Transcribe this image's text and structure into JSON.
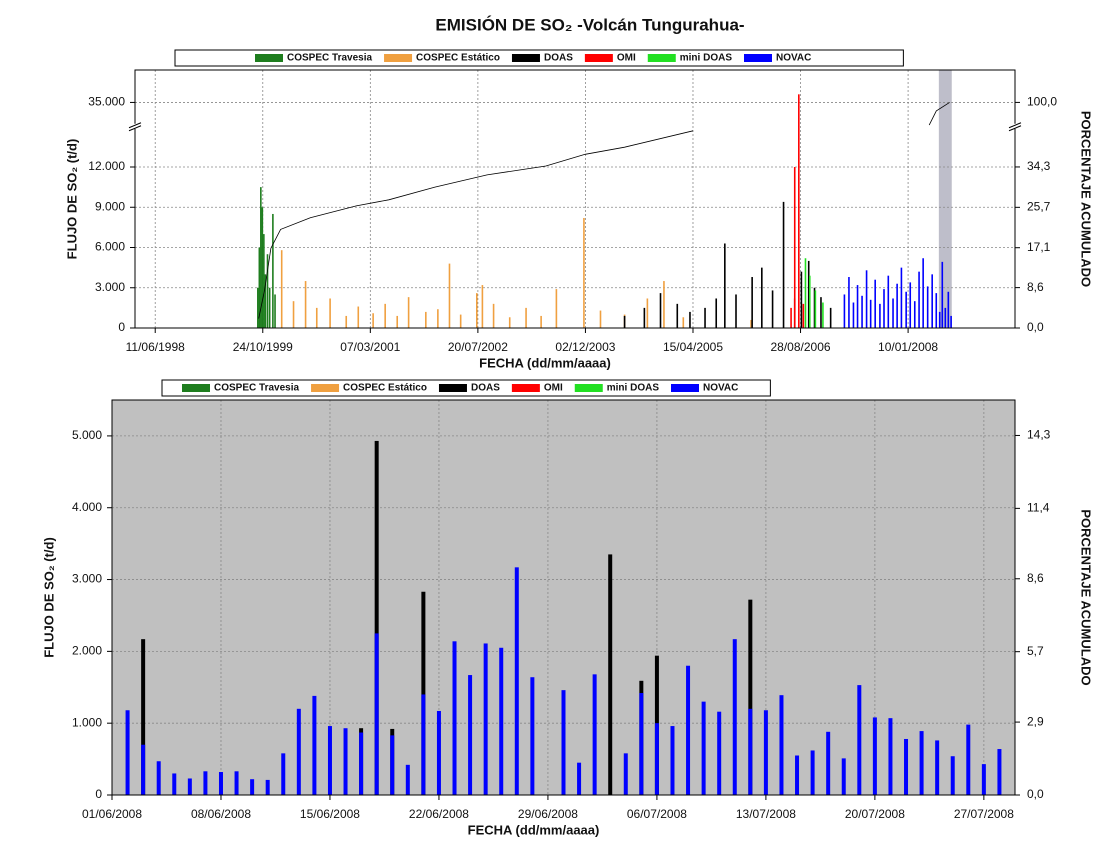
{
  "chart_data": [
    {
      "type": "bar",
      "title": "EMISIÓN DE SO₂  -Volcán Tungurahua-",
      "xlabel": "FECHA (dd/mm/aaaa)",
      "ylabel": "FLUJO DE SO₂ (t/d)",
      "y2label": "PORCENTAJE ACUMULADO",
      "legend": "top",
      "grid": true,
      "xlim": [
        "1998-03-09",
        "2009-05-21"
      ],
      "xticks": [
        {
          "value": "1998-06-11",
          "label": "11/06/1998"
        },
        {
          "value": "1999-10-24",
          "label": "24/10/1999"
        },
        {
          "value": "2001-03-07",
          "label": "07/03/2001"
        },
        {
          "value": "2002-07-20",
          "label": "20/07/2002"
        },
        {
          "value": "2003-12-02",
          "label": "02/12/2003"
        },
        {
          "value": "2005-04-15",
          "label": "15/04/2005"
        },
        {
          "value": "2006-08-28",
          "label": "28/08/2006"
        },
        {
          "value": "2008-01-10",
          "label": "10/01/2008"
        }
      ],
      "ylim": [
        0,
        37000
      ],
      "ybreak": [
        15000,
        33500
      ],
      "yticks": [
        0,
        {
          "value": 3000,
          "label": "3.000"
        },
        {
          "value": 6000,
          "label": "6.000"
        },
        {
          "value": 9000,
          "label": "9.000"
        },
        {
          "value": 12000,
          "label": "12.000"
        },
        {
          "value": 35000,
          "label": "35.000"
        }
      ],
      "y2lim": [
        0,
        105.71
      ],
      "y2break": [
        42.86,
        95.71
      ],
      "y2ticks": [
        {
          "value": 0,
          "label": "0,0"
        },
        {
          "value": 8.6,
          "label": "8,6"
        },
        {
          "value": 17.1,
          "label": "17,1"
        },
        {
          "value": 25.7,
          "label": "25,7"
        },
        {
          "value": 34.3,
          "label": "34,3"
        },
        {
          "value": 100,
          "label": "100,0"
        }
      ],
      "highlight_x": [
        "2008-06-01",
        "2008-07-31"
      ],
      "series": [
        {
          "name": "COSPEC Travesia",
          "color": "#1e7d1e",
          "x": [
            "1999-10-01",
            "1999-10-08",
            "1999-10-15",
            "1999-10-22",
            "1999-10-29",
            "1999-11-05",
            "1999-11-15",
            "1999-11-25",
            "1999-12-10",
            "1999-12-20"
          ],
          "values": [
            3000,
            6000,
            10500,
            9000,
            7000,
            4000,
            5500,
            3000,
            8500,
            2500
          ]
        },
        {
          "name": "COSPEC Estático",
          "color": "#f0a040",
          "x": [
            "2000-01-20",
            "2000-03-15",
            "2000-05-10",
            "2000-07-01",
            "2000-09-01",
            "2000-11-15",
            "2001-01-10",
            "2001-03-20",
            "2001-05-15",
            "2001-07-10",
            "2001-09-01",
            "2001-11-20",
            "2002-01-15",
            "2002-03-10",
            "2002-05-01",
            "2002-07-15",
            "2002-08-10",
            "2002-10-01",
            "2002-12-15",
            "2003-03-01",
            "2003-05-10",
            "2003-07-20",
            "2003-11-25",
            "2004-02-10",
            "2004-06-01",
            "2004-09-15",
            "2004-12-01",
            "2005-03-01",
            "2006-01-10"
          ],
          "values": [
            5800,
            2000,
            3500,
            1500,
            2200,
            900,
            1600,
            1100,
            1800,
            900,
            2300,
            1200,
            1400,
            4800,
            1000,
            2600,
            3200,
            1800,
            800,
            1500,
            900,
            2900,
            8200,
            1300,
            1000,
            2200,
            3500,
            800,
            600
          ]
        },
        {
          "name": "DOAS",
          "color": "#000000",
          "x": [
            "2004-06-01",
            "2004-09-01",
            "2004-11-15",
            "2005-02-01",
            "2005-04-01",
            "2005-06-10",
            "2005-08-01",
            "2005-09-10",
            "2005-11-01",
            "2006-01-15",
            "2006-03-01",
            "2006-04-20",
            "2006-06-10",
            "2006-08-01",
            "2006-09-01",
            "2006-10-05",
            "2006-11-01",
            "2006-12-01",
            "2007-01-15"
          ],
          "values": [
            900,
            1500,
            2600,
            1800,
            1200,
            1500,
            2200,
            6300,
            2500,
            3800,
            4500,
            2800,
            9400,
            2200,
            4200,
            5000,
            3000,
            2300,
            1500
          ]
        },
        {
          "name": "OMI",
          "color": "#ff0000",
          "x": [
            "2006-07-15",
            "2006-08-01",
            "2006-08-20",
            "2006-09-10"
          ],
          "values": [
            1500,
            12000,
            35500,
            1800
          ]
        },
        {
          "name": "mini DOAS",
          "color": "#22e022",
          "x": [
            "2006-09-20",
            "2006-10-10",
            "2006-11-05",
            "2006-12-10"
          ],
          "values": [
            5200,
            3900,
            2800,
            1900
          ]
        },
        {
          "name": "NOVAC",
          "color": "#0000ff",
          "x": [
            "2007-03-20",
            "2007-04-10",
            "2007-05-01",
            "2007-05-20",
            "2007-06-10",
            "2007-07-01",
            "2007-07-20",
            "2007-08-10",
            "2007-09-01",
            "2007-09-20",
            "2007-10-10",
            "2007-11-01",
            "2007-11-20",
            "2007-12-10",
            "2008-01-01",
            "2008-01-20",
            "2008-02-10",
            "2008-03-01",
            "2008-03-20",
            "2008-04-10",
            "2008-05-01",
            "2008-05-20",
            "2008-06-05",
            "2008-06-17",
            "2008-07-01",
            "2008-07-15",
            "2008-07-28"
          ],
          "values": [
            2500,
            3800,
            1900,
            3200,
            2400,
            4300,
            2100,
            3600,
            1800,
            2900,
            3900,
            2200,
            3300,
            4500,
            2700,
            3400,
            2000,
            4200,
            5200,
            3100,
            4000,
            2600,
            1200,
            4930,
            1500,
            2700,
            900
          ]
        },
        {
          "type": "line",
          "axis": "y2",
          "color": "#000000",
          "x": [
            "1999-10-05",
            "1999-11-01",
            "1999-12-01",
            "2000-01-15",
            "2000-06-01",
            "2001-01-01",
            "2001-06-01",
            "2002-01-01",
            "2002-09-01",
            "2003-06-01",
            "2003-12-01",
            "2004-06-01",
            "2005-04-15",
            "2006-01-01",
            "2008-04-17",
            "2008-05-20",
            "2008-07-21"
          ],
          "values": [
            2,
            8,
            17,
            21,
            23.5,
            26,
            27.3,
            30,
            32.6,
            34.5,
            37,
            38.5,
            42,
            null,
            96,
            98.5,
            100
          ]
        }
      ]
    },
    {
      "type": "bar",
      "xlabel": "FECHA (dd/mm/aaaa)",
      "ylabel": "FLUJO DE SO₂ (t/d)",
      "y2label": "PORCENTAJE ACUMULADO",
      "legend": "top",
      "grid": true,
      "background": "#c0c0c0",
      "xlim": [
        "2008-06-01",
        "2008-07-29"
      ],
      "xticks": [
        {
          "value": "2008-06-01",
          "label": "01/06/2008"
        },
        {
          "value": "2008-06-08",
          "label": "08/06/2008"
        },
        {
          "value": "2008-06-15",
          "label": "15/06/2008"
        },
        {
          "value": "2008-06-22",
          "label": "22/06/2008"
        },
        {
          "value": "2008-06-29",
          "label": "29/06/2008"
        },
        {
          "value": "2008-07-06",
          "label": "06/07/2008"
        },
        {
          "value": "2008-07-13",
          "label": "13/07/2008"
        },
        {
          "value": "2008-07-20",
          "label": "20/07/2008"
        },
        {
          "value": "2008-07-27",
          "label": "27/07/2008"
        }
      ],
      "ylim": [
        0,
        5500
      ],
      "yticks": [
        0,
        {
          "value": 1000,
          "label": "1.000"
        },
        {
          "value": 2000,
          "label": "2.000"
        },
        {
          "value": 3000,
          "label": "3.000"
        },
        {
          "value": 4000,
          "label": "4.000"
        },
        {
          "value": 5000,
          "label": "5.000"
        }
      ],
      "y2lim": [
        0,
        15.71
      ],
      "y2ticks": [
        {
          "value": 0,
          "label": "0,0"
        },
        {
          "value": 2.9,
          "label": "2,9"
        },
        {
          "value": 5.7,
          "label": "5,7"
        },
        {
          "value": 8.6,
          "label": "8,6"
        },
        {
          "value": 11.4,
          "label": "11,4"
        },
        {
          "value": 14.3,
          "label": "14,3"
        }
      ],
      "series": [
        {
          "name": "COSPEC Travesia",
          "color": "#1e7d1e",
          "x": [],
          "values": []
        },
        {
          "name": "COSPEC Estático",
          "color": "#f0a040",
          "x": [],
          "values": []
        },
        {
          "name": "DOAS",
          "color": "#000000",
          "x": [
            "2008-06-03",
            "2008-06-17",
            "2008-06-18",
            "2008-06-19",
            "2008-06-21",
            "2008-07-03",
            "2008-07-05",
            "2008-07-06",
            "2008-07-12"
          ],
          "values": [
            2170,
            930,
            4930,
            920,
            2830,
            3350,
            1590,
            1940,
            2720
          ]
        },
        {
          "name": "OMI",
          "color": "#ff0000",
          "x": [],
          "values": []
        },
        {
          "name": "mini DOAS",
          "color": "#22e022",
          "x": [],
          "values": []
        },
        {
          "name": "NOVAC",
          "color": "#0000ff",
          "x": [
            "2008-06-02",
            "2008-06-03",
            "2008-06-04",
            "2008-06-05",
            "2008-06-06",
            "2008-06-07",
            "2008-06-08",
            "2008-06-09",
            "2008-06-10",
            "2008-06-11",
            "2008-06-12",
            "2008-06-13",
            "2008-06-14",
            "2008-06-15",
            "2008-06-16",
            "2008-06-17",
            "2008-06-18",
            "2008-06-19",
            "2008-06-20",
            "2008-06-21",
            "2008-06-22",
            "2008-06-23",
            "2008-06-24",
            "2008-06-25",
            "2008-06-26",
            "2008-06-27",
            "2008-06-28",
            "2008-06-30",
            "2008-07-01",
            "2008-07-02",
            "2008-07-04",
            "2008-07-05",
            "2008-07-06",
            "2008-07-07",
            "2008-07-08",
            "2008-07-09",
            "2008-07-10",
            "2008-07-11",
            "2008-07-12",
            "2008-07-13",
            "2008-07-14",
            "2008-07-15",
            "2008-07-16",
            "2008-07-17",
            "2008-07-18",
            "2008-07-19",
            "2008-07-20",
            "2008-07-21",
            "2008-07-22",
            "2008-07-23",
            "2008-07-24",
            "2008-07-25",
            "2008-07-26",
            "2008-07-27",
            "2008-07-28"
          ],
          "values": [
            1180,
            700,
            470,
            300,
            230,
            330,
            320,
            330,
            220,
            210,
            580,
            1200,
            1380,
            960,
            930,
            870,
            2250,
            830,
            420,
            1400,
            1170,
            2140,
            1670,
            2110,
            2050,
            3170,
            1640,
            1460,
            450,
            1680,
            580,
            1420,
            1000,
            960,
            1800,
            1300,
            1160,
            2170,
            1200,
            1180,
            1390,
            550,
            620,
            880,
            510,
            1530,
            1080,
            1070,
            780,
            890,
            760,
            540,
            980,
            430,
            640
          ]
        }
      ]
    }
  ]
}
